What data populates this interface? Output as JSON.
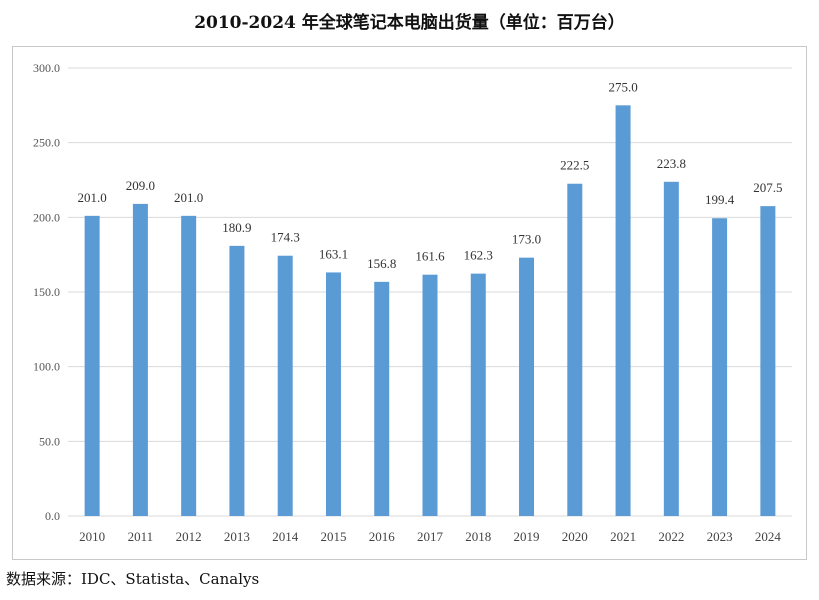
{
  "chart_data": {
    "type": "bar",
    "title": "2010-2024 年全球笔记本电脑出货量（单位：百万台）",
    "categories": [
      "2010",
      "2011",
      "2012",
      "2013",
      "2014",
      "2015",
      "2016",
      "2017",
      "2018",
      "2019",
      "2020",
      "2021",
      "2022",
      "2023",
      "2024"
    ],
    "values": [
      201.0,
      209.0,
      201.0,
      180.9,
      174.3,
      163.1,
      156.8,
      161.6,
      162.3,
      173.0,
      222.5,
      275.0,
      223.8,
      199.4,
      207.5
    ],
    "value_labels": [
      "201.0",
      "209.0",
      "201.0",
      "180.9",
      "174.3",
      "163.1",
      "156.8",
      "161.6",
      "162.3",
      "173.0",
      "222.5",
      "275.0",
      "223.8",
      "199.4",
      "207.5"
    ],
    "ylim": [
      0,
      300
    ],
    "yticks": [
      "0.0",
      "50.0",
      "100.0",
      "150.0",
      "200.0",
      "250.0",
      "300.0"
    ],
    "ytick_values": [
      0,
      50,
      100,
      150,
      200,
      250,
      300
    ],
    "grid": true,
    "bar_color": "#5b9bd5",
    "grid_color": "#d9d9d9"
  },
  "source": "数据来源：IDC、Statista、Canalys"
}
